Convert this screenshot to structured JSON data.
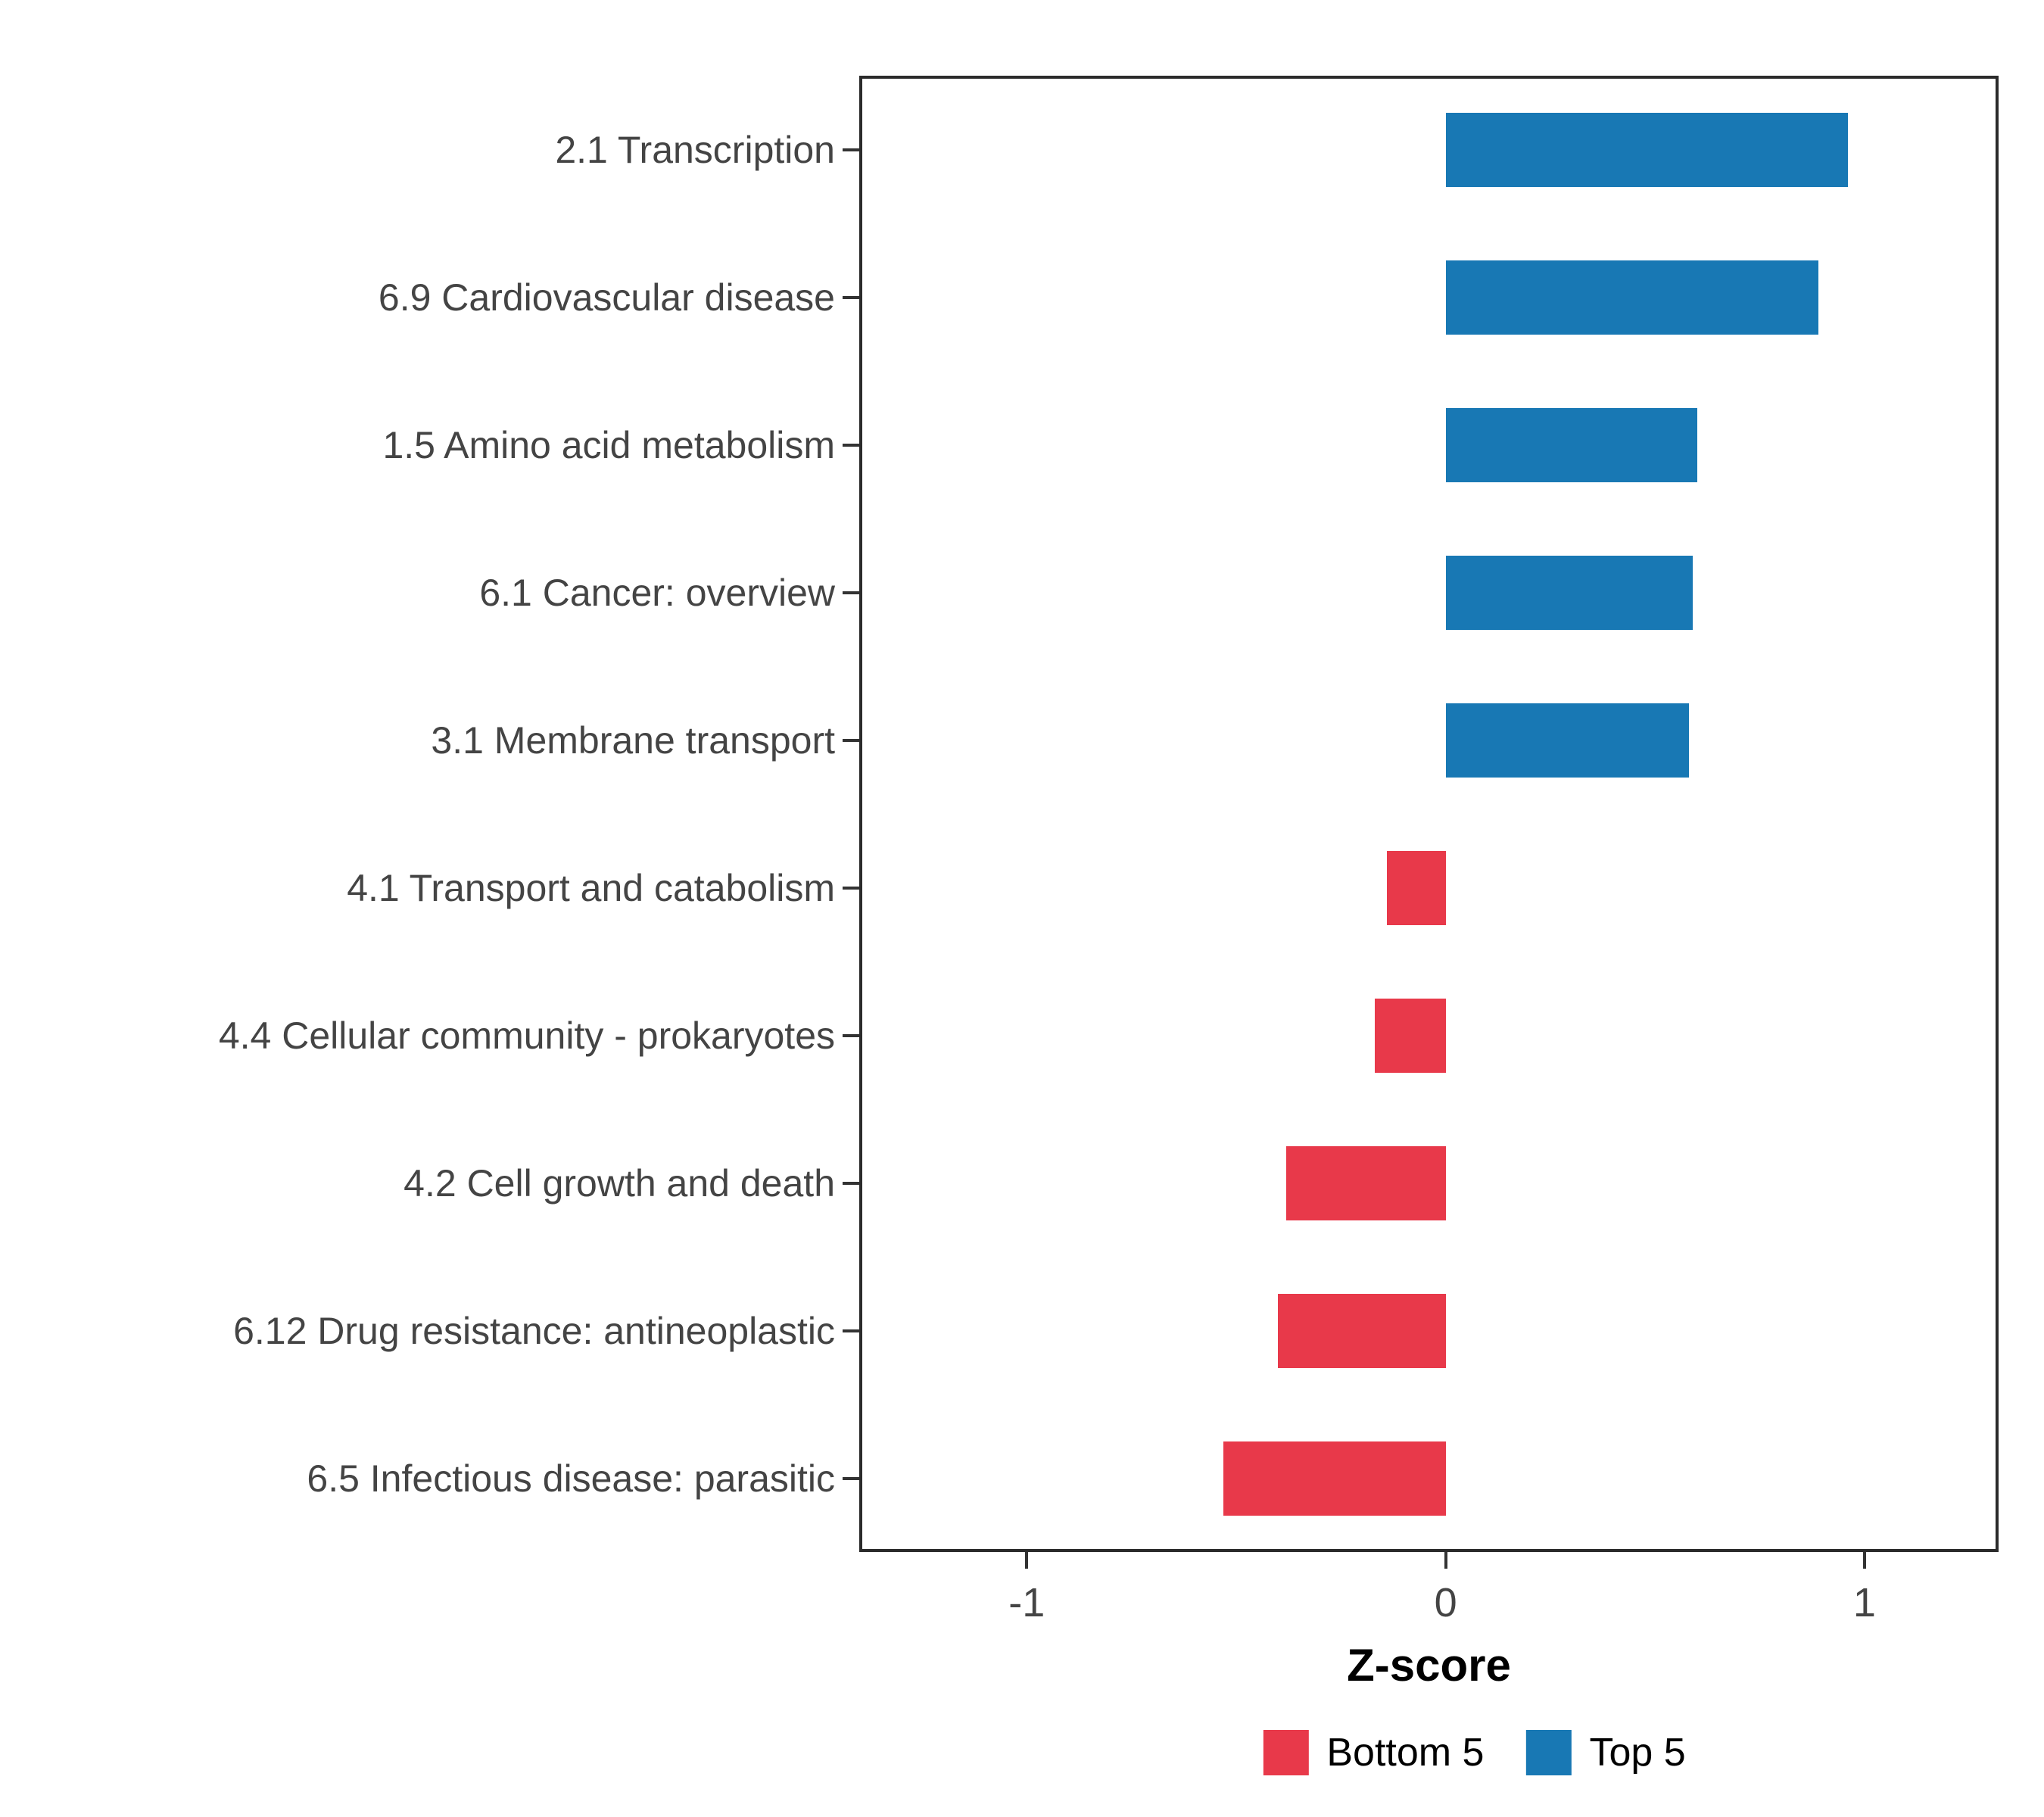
{
  "chart_data": {
    "type": "bar",
    "orientation": "horizontal",
    "title": "",
    "xlabel": "Z-score",
    "ylabel": "",
    "xlim": [
      -1.4,
      1.32
    ],
    "x_ticks": [
      -1,
      0,
      1
    ],
    "grid": false,
    "legend_position": "bottom",
    "categories": [
      "2.1 Transcription",
      "6.9 Cardiovascular disease",
      "1.5 Amino acid metabolism",
      "6.1 Cancer: overview",
      "3.1 Membrane transport",
      "4.1 Transport and catabolism",
      "4.4 Cellular community - prokaryotes",
      "4.2 Cell growth and death",
      "6.12 Drug resistance: antineoplastic",
      "6.5 Infectious disease: parasitic"
    ],
    "values": [
      0.96,
      0.89,
      0.6,
      0.59,
      0.58,
      -0.14,
      -0.17,
      -0.38,
      -0.4,
      -0.53
    ],
    "groups": [
      "Top 5",
      "Top 5",
      "Top 5",
      "Top 5",
      "Top 5",
      "Bottom 5",
      "Bottom 5",
      "Bottom 5",
      "Bottom 5",
      "Bottom 5"
    ],
    "colors": {
      "Top 5": "#1878B4",
      "Bottom 5": "#E8394A"
    },
    "legend": {
      "items": [
        {
          "label": "Bottom 5",
          "color": "#E8394A"
        },
        {
          "label": "Top 5",
          "color": "#1878B4"
        }
      ]
    }
  }
}
